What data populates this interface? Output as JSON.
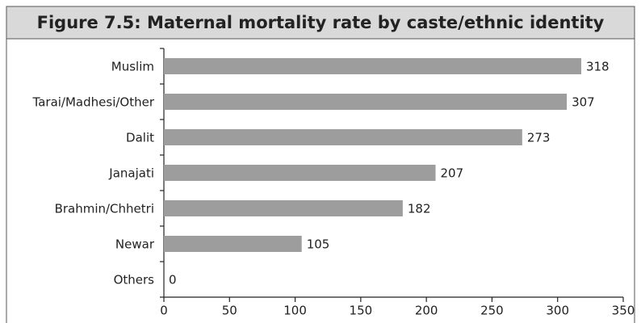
{
  "chart_data": {
    "type": "bar",
    "orientation": "horizontal",
    "title": "Figure 7.5: Maternal mortality rate by caste/ethnic identity",
    "categories": [
      "Muslim",
      "Tarai/Madhesi/Other",
      "Dalit",
      "Janajati",
      "Brahmin/Chhetri",
      "Newar",
      "Others"
    ],
    "values": [
      318,
      307,
      273,
      207,
      182,
      105,
      0
    ],
    "color": "#9d9d9d",
    "xlim": [
      0,
      350
    ],
    "xticks": [
      0,
      50,
      100,
      150,
      200,
      250,
      300,
      350
    ]
  }
}
